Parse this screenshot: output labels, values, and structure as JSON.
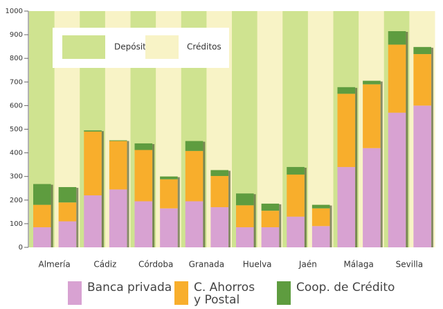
{
  "chart_data": {
    "type": "bar",
    "stacked": true,
    "categories": [
      "Almería",
      "Cádiz",
      "Córdoba",
      "Granada",
      "Huelva",
      "Jaén",
      "Málaga",
      "Sevilla"
    ],
    "series": [
      {
        "name": "Banca privada",
        "color": "#d8a2d2"
      },
      {
        "name": "C. Ahorros\ny Postal",
        "color": "#f8ae2c"
      },
      {
        "name": "Coop. de Crédito",
        "color": "#5e9c3f"
      }
    ],
    "stacks": [
      {
        "name": "Depósitos",
        "color": "#cfe390",
        "values": [
          [
            85,
            95,
            88
          ],
          [
            220,
            270,
            5
          ],
          [
            195,
            217,
            28
          ],
          [
            195,
            213,
            42
          ],
          [
            85,
            93,
            50
          ],
          [
            130,
            178,
            32
          ],
          [
            340,
            310,
            28
          ],
          [
            570,
            288,
            57
          ]
        ]
      },
      {
        "name": "Créditos",
        "color": "#f8f3c6",
        "values": [
          [
            110,
            80,
            65
          ],
          [
            245,
            205,
            3
          ],
          [
            165,
            123,
            12
          ],
          [
            170,
            132,
            25
          ],
          [
            85,
            70,
            30
          ],
          [
            90,
            75,
            15
          ],
          [
            420,
            270,
            15
          ],
          [
            600,
            218,
            30
          ]
        ]
      }
    ],
    "ylim": [
      0,
      1000
    ],
    "yticks": [
      0,
      100,
      200,
      300,
      400,
      500,
      600,
      700,
      800,
      900,
      1000
    ]
  }
}
